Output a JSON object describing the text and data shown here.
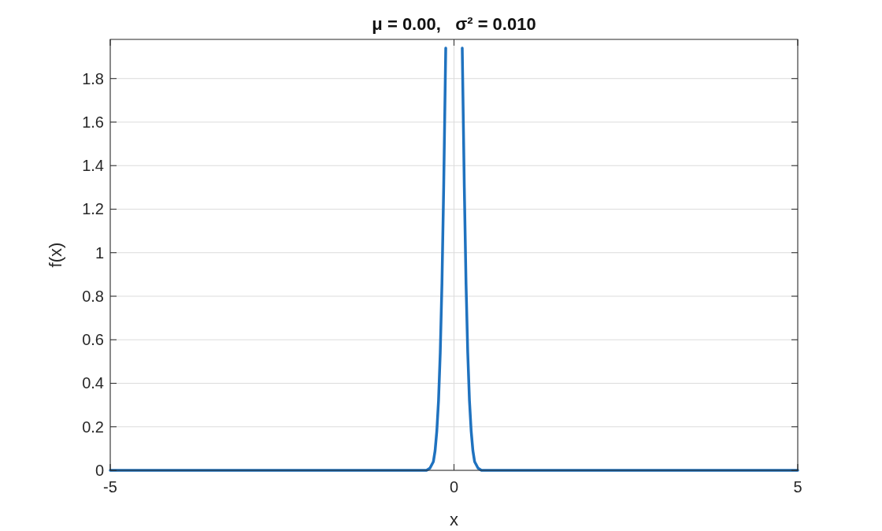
{
  "chart_data": {
    "type": "line",
    "title": "μ = 0.00,   σ² = 0.010",
    "xlabel": "x",
    "ylabel": "f(x)",
    "x": [
      -5,
      -0.5,
      -0.4,
      -0.35,
      -0.3,
      -0.275,
      -0.25,
      -0.225,
      -0.2,
      -0.175,
      -0.15,
      -0.12,
      0,
      0.12,
      0.15,
      0.175,
      0.2,
      0.225,
      0.25,
      0.275,
      0.3,
      0.35,
      0.4,
      0.5,
      5
    ],
    "series": [
      {
        "color": "#1f72bf",
        "values": [
          0,
          0,
          0.0,
          0.01,
          0.04,
          0.09,
          0.18,
          0.32,
          0.54,
          0.86,
          1.3,
          1.94,
          null,
          1.94,
          1.3,
          0.86,
          0.54,
          0.32,
          0.18,
          0.09,
          0.04,
          0.01,
          0.0,
          0,
          0
        ]
      }
    ],
    "xlim": [
      -5,
      5
    ],
    "xticks": [
      -5,
      0,
      5
    ],
    "ylim": [
      0,
      1.98
    ],
    "yticks": [
      0,
      0.2,
      0.4,
      0.6,
      0.8,
      1,
      1.2,
      1.4,
      1.6,
      1.8
    ],
    "grid": true,
    "line_style": "solid",
    "marker": "none"
  }
}
